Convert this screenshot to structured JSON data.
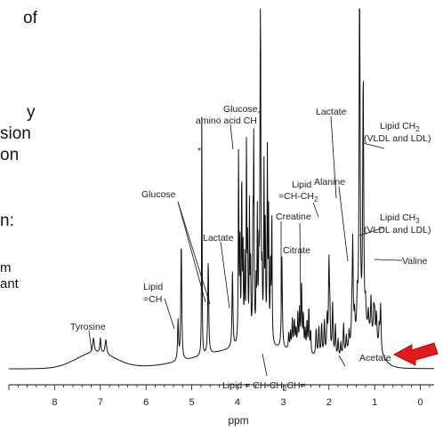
{
  "slide_fragments": [
    "of",
    "y",
    "sion",
    "on",
    "n:",
    "m",
    "ant"
  ],
  "chart_data": {
    "type": "line",
    "title": "",
    "xlabel": "ppm",
    "ylabel": "",
    "xlim": [
      9.0,
      -0.3
    ],
    "x_reversed": true,
    "xticks": [
      8,
      7,
      6,
      5,
      4,
      3,
      2,
      1,
      0
    ],
    "grid": false,
    "legend": "none",
    "asterisk": "*",
    "peaks": [
      {
        "name": "Tyrosine",
        "ppm": 7.0,
        "intensity": 0.04
      },
      {
        "name": "Lipid =CH",
        "ppm": 5.3,
        "intensity": 0.11
      },
      {
        "name": "Glucose",
        "ppm": 5.23,
        "intensity": 0.33
      },
      {
        "name": "Glucose",
        "ppm": 4.64,
        "intensity": 0.26
      },
      {
        "name": "Lactate",
        "ppm": 4.11,
        "intensity": 0.21
      },
      {
        "name": "Glucose, amino acid CH",
        "ppm": 3.5,
        "intensity": 0.76
      },
      {
        "name": "Creatine",
        "ppm": 3.03,
        "intensity": 0.26
      },
      {
        "name": "Citrate",
        "ppm": 2.6,
        "intensity": 0.11
      },
      {
        "name": "Lipid =CH-CH2",
        "ppm": 2.0,
        "intensity": 0.25
      },
      {
        "name": "Lipid = CH-CH2CH=",
        "ppm": 2.75,
        "intensity": 0.03
      },
      {
        "name": "Alanine",
        "ppm": 1.48,
        "intensity": 0.28
      },
      {
        "name": "Lactate",
        "ppm": 1.33,
        "intensity": 1.0
      },
      {
        "name": "Lipid CH2 (VLDL and LDL)",
        "ppm": 1.25,
        "intensity": 0.66
      },
      {
        "name": "Acetate",
        "ppm": 1.92,
        "intensity": 0.05
      },
      {
        "name": "Lipid CH3 (VLDL and LDL)",
        "ppm": 0.87,
        "intensity": 0.13
      },
      {
        "name": "Valine",
        "ppm": 1.0,
        "intensity": 0.07
      }
    ],
    "annotations": {
      "tyrosine": "Tyrosine",
      "lipid_ch_1": "Lipid",
      "lipid_ch_2": "=CH",
      "glucose": "Glucose",
      "lactate_a": "Lactate",
      "glucose_aa_1": "Glucose,",
      "glucose_aa_2": "amino acid CH",
      "lipid_chch2_1": "Lipid",
      "lipid_chch2_2": "=CH-CH",
      "lipid_chch2_sub": "2",
      "creatine": "Creatine",
      "citrate": "Citrate",
      "lactate_b": "Lactate",
      "alanine": "Alanine",
      "lipid_ch2_1": "Lipid CH",
      "lipid_ch2_sub": "2",
      "lipid_ch2_2": "(VLDL and LDL)",
      "lipid_ch3_1": "Lipid CH",
      "lipid_ch3_sub": "3",
      "lipid_ch3_2": "(VLDL and LDL)",
      "valine": "Valine",
      "acetate": "Acetate",
      "lipid_bottom_1": "Lipid = CH-CH",
      "lipid_bottom_sub": "2",
      "lipid_bottom_2": "CH="
    },
    "arrow_color": "#e5191b"
  }
}
